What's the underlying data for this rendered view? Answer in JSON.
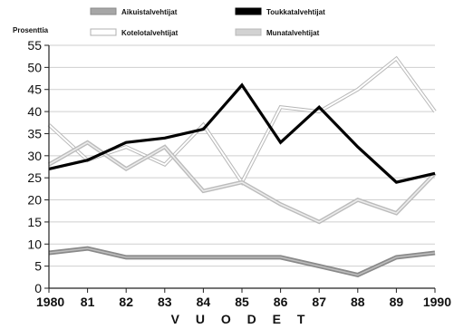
{
  "chart_data": {
    "type": "line",
    "ylabel": "Prosenttia",
    "xlabel": "V U O D E T",
    "ylim": [
      0,
      55
    ],
    "y_ticks": [
      "0",
      "5",
      "10",
      "15",
      "20",
      "25",
      "30",
      "35",
      "40",
      "45",
      "50",
      "55"
    ],
    "categories": [
      "1980",
      "81",
      "82",
      "83",
      "84",
      "85",
      "86",
      "87",
      "88",
      "89",
      "1990"
    ],
    "grid": true,
    "legend_position": "top",
    "series": [
      {
        "name": "Aikuistalvehtijat",
        "color": "#9a9a9a",
        "style": "gray-double",
        "values": [
          8,
          9,
          7,
          7,
          7,
          7,
          7,
          5,
          3,
          7,
          8
        ]
      },
      {
        "name": "Toukkatalvehtijat",
        "color": "#000000",
        "style": "solid-black",
        "values": [
          27,
          29,
          33,
          34,
          36,
          46,
          33,
          41,
          32,
          24,
          26
        ]
      },
      {
        "name": "Kotelotalvehtijat",
        "color": "#bdbdbd",
        "style": "white-outline",
        "values": [
          37,
          29,
          32,
          28,
          37,
          24,
          41,
          40,
          45,
          52,
          40
        ]
      },
      {
        "name": "Munatalvehtijat",
        "color": "#c8c8c8",
        "style": "light-double",
        "values": [
          28,
          33,
          27,
          32,
          22,
          24,
          19,
          15,
          20,
          17,
          26
        ]
      }
    ]
  }
}
